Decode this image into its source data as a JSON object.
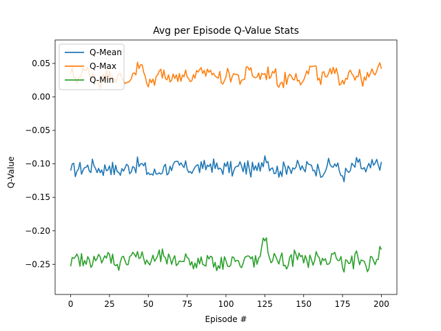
{
  "chart_data": {
    "type": "line",
    "title": "Avg per Episode Q-Value Stats",
    "xlabel": "Episode #",
    "ylabel": "Q-Value",
    "xlim": [
      -10,
      210
    ],
    "ylim": [
      -0.295,
      0.085
    ],
    "xticks": [
      0,
      25,
      50,
      75,
      100,
      125,
      150,
      175,
      200
    ],
    "yticks": [
      0.05,
      0.0,
      -0.05,
      -0.1,
      -0.15,
      -0.2,
      -0.25
    ],
    "ytick_labels": [
      "0.05",
      "0.00",
      "−0.05",
      "−0.10",
      "−0.15",
      "−0.20",
      "−0.25"
    ],
    "grid": false,
    "legend_position": "upper-left",
    "series": [
      {
        "name": "Q-Mean",
        "color": "#1f77b4",
        "x": [
          0,
          5,
          10,
          15,
          20,
          25,
          30,
          35,
          40,
          45,
          50,
          55,
          60,
          65,
          70,
          75,
          80,
          85,
          90,
          95,
          100,
          105,
          110,
          115,
          120,
          125,
          130,
          135,
          140,
          145,
          150,
          155,
          160,
          165,
          170,
          175,
          180,
          185,
          190,
          195,
          200
        ],
        "values": [
          -0.11,
          -0.108,
          -0.105,
          -0.103,
          -0.109,
          -0.103,
          -0.112,
          -0.106,
          -0.104,
          -0.1,
          -0.113,
          -0.115,
          -0.104,
          -0.11,
          -0.102,
          -0.108,
          -0.105,
          -0.107,
          -0.1,
          -0.108,
          -0.104,
          -0.11,
          -0.103,
          -0.108,
          -0.11,
          -0.088,
          -0.106,
          -0.111,
          -0.103,
          -0.105,
          -0.108,
          -0.102,
          -0.11,
          -0.104,
          -0.1,
          -0.118,
          -0.11,
          -0.098,
          -0.112,
          -0.102,
          -0.097
        ]
      },
      {
        "name": "Q-Max",
        "color": "#ff7f0e",
        "x": [
          0,
          5,
          10,
          15,
          20,
          25,
          30,
          35,
          40,
          45,
          50,
          55,
          60,
          65,
          70,
          75,
          80,
          85,
          90,
          95,
          100,
          105,
          110,
          115,
          120,
          125,
          130,
          135,
          140,
          145,
          150,
          155,
          160,
          165,
          170,
          175,
          180,
          185,
          190,
          195,
          200
        ],
        "values": [
          0.035,
          0.028,
          0.04,
          0.032,
          0.022,
          0.038,
          0.03,
          0.02,
          0.035,
          0.048,
          0.015,
          0.03,
          0.04,
          0.025,
          0.035,
          0.03,
          0.028,
          0.035,
          0.04,
          0.028,
          0.03,
          0.035,
          0.025,
          0.04,
          0.03,
          0.035,
          0.038,
          0.02,
          0.03,
          0.035,
          0.025,
          0.045,
          0.028,
          0.03,
          0.035,
          0.025,
          0.04,
          0.03,
          0.025,
          0.035,
          0.042
        ]
      },
      {
        "name": "Q-Min",
        "color": "#2ca02c",
        "x": [
          0,
          5,
          10,
          15,
          20,
          25,
          30,
          35,
          40,
          45,
          50,
          55,
          60,
          65,
          70,
          75,
          80,
          85,
          90,
          95,
          100,
          105,
          110,
          115,
          120,
          125,
          130,
          135,
          140,
          145,
          150,
          155,
          160,
          165,
          170,
          175,
          180,
          185,
          190,
          195,
          200
        ],
        "values": [
          -0.253,
          -0.24,
          -0.25,
          -0.238,
          -0.248,
          -0.235,
          -0.25,
          -0.245,
          -0.232,
          -0.24,
          -0.248,
          -0.242,
          -0.238,
          -0.25,
          -0.245,
          -0.24,
          -0.248,
          -0.25,
          -0.238,
          -0.252,
          -0.245,
          -0.24,
          -0.255,
          -0.238,
          -0.25,
          -0.215,
          -0.245,
          -0.24,
          -0.252,
          -0.235,
          -0.248,
          -0.243,
          -0.24,
          -0.25,
          -0.232,
          -0.255,
          -0.248,
          -0.24,
          -0.252,
          -0.245,
          -0.228
        ]
      }
    ]
  }
}
